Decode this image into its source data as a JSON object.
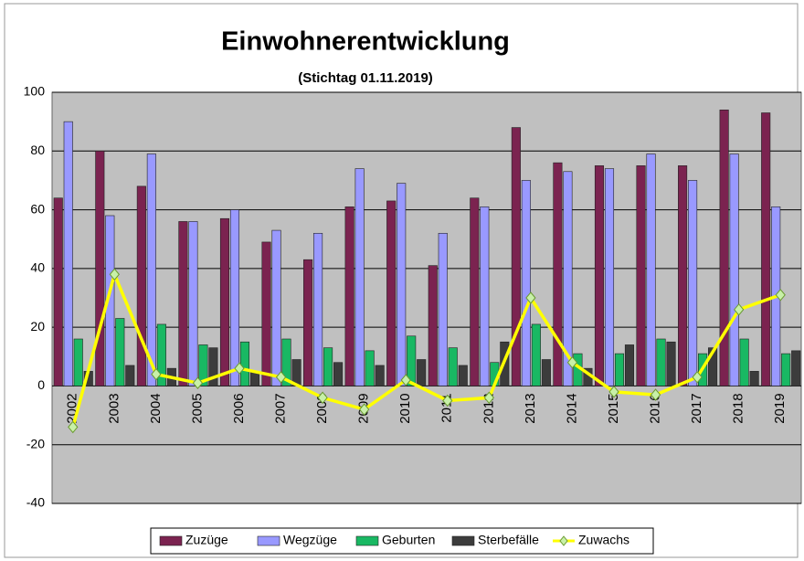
{
  "chart_data": {
    "type": "bar",
    "title": "Einwohnerentwicklung",
    "subtitle": "(Stichtag 01.11.2019)",
    "categories": [
      "2002",
      "2003",
      "2004",
      "2005",
      "2006",
      "2007",
      "2008",
      "2009",
      "2010",
      "2011",
      "2012",
      "2013",
      "2014",
      "2015",
      "2016",
      "2017",
      "2018",
      "2019"
    ],
    "series": [
      {
        "name": "Zuzüge",
        "type": "bar",
        "color": "#7b2350",
        "values": [
          64,
          80,
          68,
          56,
          57,
          49,
          43,
          61,
          63,
          41,
          64,
          88,
          76,
          75,
          75,
          75,
          94,
          93
        ]
      },
      {
        "name": "Wegzüge",
        "type": "bar",
        "color": "#9999ff",
        "values": [
          90,
          58,
          79,
          56,
          60,
          53,
          52,
          74,
          69,
          52,
          61,
          70,
          73,
          74,
          79,
          70,
          79,
          61
        ]
      },
      {
        "name": "Geburten",
        "type": "bar",
        "color": "#19b863",
        "values": [
          16,
          23,
          21,
          14,
          15,
          16,
          13,
          12,
          17,
          13,
          8,
          21,
          11,
          11,
          16,
          11,
          16,
          11
        ]
      },
      {
        "name": "Sterbefälle",
        "type": "bar",
        "color": "#3c3c3c",
        "values": [
          5,
          7,
          6,
          13,
          5,
          9,
          8,
          7,
          9,
          7,
          15,
          9,
          6,
          14,
          15,
          13,
          5,
          12
        ]
      },
      {
        "name": "Zuwachs",
        "type": "line",
        "color": "#ffff00",
        "values": [
          -14,
          38,
          4,
          1,
          6,
          3,
          -4,
          -8,
          2,
          -5,
          -4,
          30,
          8,
          -2,
          -3,
          3,
          26,
          31
        ]
      }
    ],
    "ylim": [
      -40,
      100
    ],
    "yticks": [
      -40,
      -20,
      0,
      20,
      40,
      60,
      80,
      100
    ],
    "grid": true
  }
}
